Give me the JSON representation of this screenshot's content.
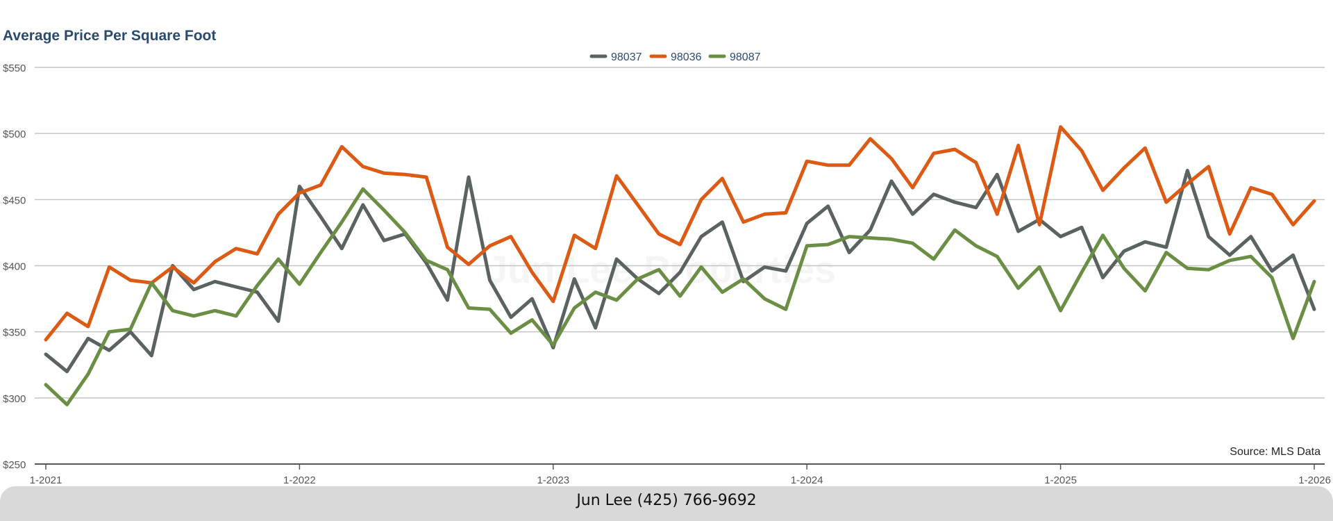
{
  "watermark_text": "Jun Lee Properties",
  "source_text": "Source: MLS Data",
  "footer_text": "Jun Lee (425) 766-9692",
  "chart_data": {
    "type": "line",
    "title": "Average Price Per Square Foot",
    "xlabel": "",
    "ylabel": "",
    "ylim": [
      250,
      550
    ],
    "yticks": [
      "$250",
      "$300",
      "$350",
      "$400",
      "$450",
      "$500",
      "$550"
    ],
    "yvalues": [
      250,
      300,
      350,
      400,
      450,
      500,
      550
    ],
    "xticks": [
      "1-2021",
      "1-2022",
      "1-2023",
      "1-2024",
      "1-2025",
      "1-2026"
    ],
    "xtick_index": [
      0,
      12,
      24,
      36,
      48,
      60
    ],
    "x_count": 61,
    "grid": true,
    "legend_position": "top-center",
    "series": [
      {
        "name": "98037",
        "color": "#5a6262",
        "values": [
          333,
          320,
          345,
          336,
          350,
          332,
          400,
          382,
          388,
          384,
          380,
          358,
          460,
          437,
          413,
          446,
          419,
          424,
          402,
          374,
          467,
          389,
          361,
          375,
          338,
          390,
          353,
          405,
          390,
          379,
          395,
          422,
          433,
          388,
          399,
          396,
          432,
          445,
          410,
          427,
          464,
          439,
          454,
          448,
          444,
          469,
          426,
          435,
          422,
          429,
          391,
          411,
          418,
          414,
          472,
          422,
          408,
          422,
          396,
          408,
          367
        ]
      },
      {
        "name": "98036",
        "color": "#dc5a14",
        "values": [
          344,
          364,
          354,
          399,
          389,
          387,
          399,
          387,
          403,
          413,
          409,
          439,
          455,
          461,
          490,
          475,
          470,
          469,
          467,
          414,
          401,
          415,
          422,
          395,
          373,
          423,
          413,
          468,
          446,
          424,
          416,
          450,
          466,
          433,
          439,
          440,
          479,
          476,
          476,
          496,
          481,
          459,
          485,
          488,
          478,
          439,
          491,
          431,
          505,
          487,
          457,
          474,
          489,
          448,
          462,
          475,
          424,
          459,
          454,
          431,
          449
        ]
      },
      {
        "name": "98087",
        "color": "#6b8e45",
        "values": [
          310,
          295,
          318,
          350,
          352,
          387,
          366,
          362,
          366,
          362,
          385,
          405,
          386,
          410,
          433,
          458,
          442,
          425,
          404,
          397,
          368,
          367,
          349,
          359,
          340,
          368,
          380,
          374,
          390,
          397,
          377,
          399,
          380,
          390,
          375,
          367,
          415,
          416,
          422,
          421,
          420,
          417,
          405,
          427,
          415,
          407,
          383,
          399,
          366,
          395,
          423,
          398,
          381,
          410,
          398,
          397,
          404,
          407,
          391,
          345,
          388
        ]
      }
    ]
  }
}
